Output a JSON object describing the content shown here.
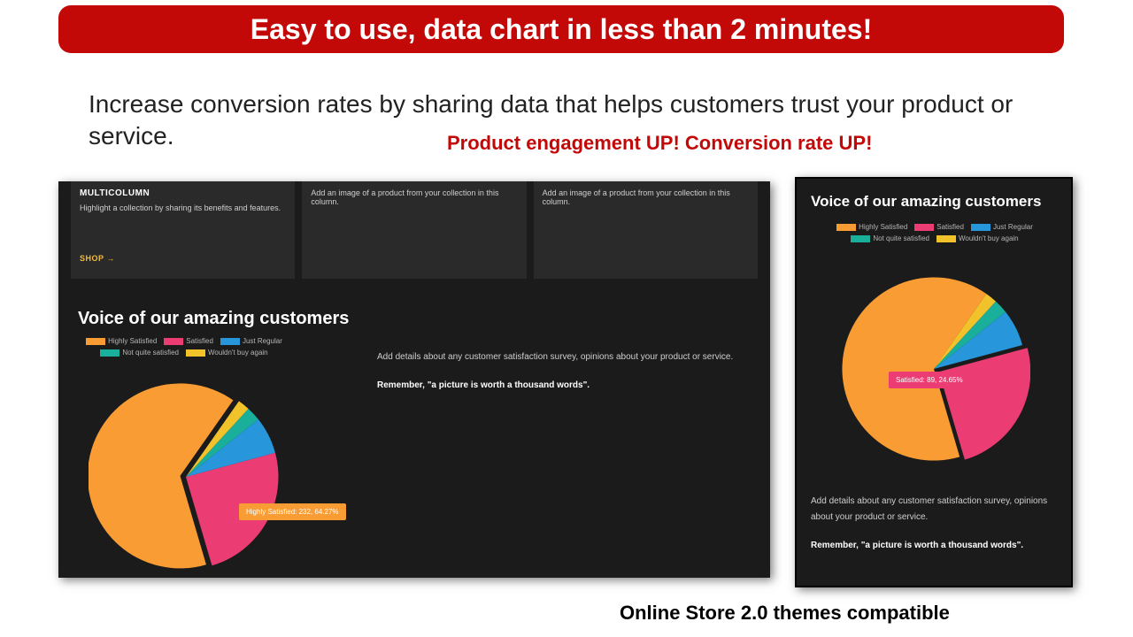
{
  "banner": {
    "text": "Easy to use, data chart in less than 2 minutes!",
    "bg": "#c30808",
    "color": "#ffffff"
  },
  "subhead": "Increase conversion rates by sharing data that helps customers trust your product or service.",
  "engagement": {
    "text": "Product engagement UP! Conversion rate UP!",
    "color": "#c30808"
  },
  "compat": "Online Store 2.0 themes compatible",
  "panel_bg": "#1b1b1b",
  "large_panel": {
    "cards": {
      "card1": {
        "title": "MULTICOLUMN",
        "body": "Highlight a collection by sharing its benefits and features.",
        "shop": "SHOP  →"
      },
      "card2": {
        "body": "Add an image of a product from your collection in this column."
      },
      "card3": {
        "body": "Add an image of a product from your collection in this column."
      }
    },
    "chart_title": "Voice of our amazing customers",
    "desc1": "Add details about any customer satisfaction survey, opinions about your product or service.",
    "desc2": "Remember, \"a picture is worth a thousand words\".",
    "tooltip": {
      "text": "Highly Satisfied: 232, 64.27%",
      "bg": "#f89c33"
    }
  },
  "small_panel": {
    "chart_title": "Voice of our amazing customers",
    "desc1": "Add details about any customer satisfaction survey, opinions about your product or service.",
    "desc2": "Remember, \"a picture is worth a thousand words\".",
    "tooltip": {
      "text": "Satisfied: 89, 24.65%",
      "bg": "#ec3c74"
    }
  },
  "legend": {
    "items": [
      {
        "label": "Highly Satisfied",
        "color": "#f89c33"
      },
      {
        "label": "Satisfied",
        "color": "#ec3c74"
      },
      {
        "label": "Just Regular",
        "color": "#2796db"
      },
      {
        "label": "Not quite satisfied",
        "color": "#1aaf9a"
      },
      {
        "label": "Wouldn't buy again",
        "color": "#f2c22b"
      }
    ]
  },
  "pie": {
    "type": "pie",
    "slices": [
      {
        "label": "Highly Satisfied",
        "pct": 64.27,
        "color": "#f89c33"
      },
      {
        "label": "Satisfied",
        "pct": 24.65,
        "color": "#ec3c74"
      },
      {
        "label": "Just Regular",
        "pct": 6.5,
        "color": "#2796db"
      },
      {
        "label": "Not quite satisfied",
        "pct": 2.5,
        "color": "#1aaf9a"
      },
      {
        "label": "Wouldn't buy again",
        "pct": 2.08,
        "color": "#f2c22b"
      }
    ],
    "start_angle_deg": -55
  }
}
